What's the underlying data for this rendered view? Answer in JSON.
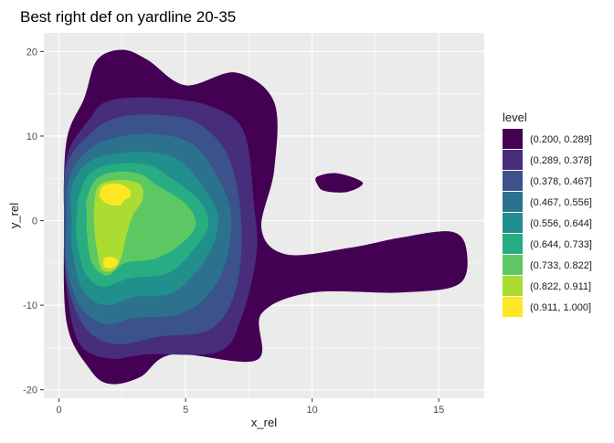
{
  "chart_data": {
    "type": "contour",
    "title": "Best right def on yardline 20-35",
    "xlabel": "x_rel",
    "ylabel": "y_rel",
    "xlim": [
      -0.6,
      16.8
    ],
    "ylim": [
      -21.0,
      22.2
    ],
    "x_ticks": [
      0,
      5,
      10,
      15
    ],
    "x_tick_labels": [
      "0",
      "5",
      "10",
      "15"
    ],
    "y_ticks": [
      -20,
      -10,
      0,
      10,
      20
    ],
    "y_tick_labels": [
      "-20",
      "-10",
      "0",
      "10",
      "20"
    ],
    "grid": true,
    "legend_position": "right",
    "legend_title": "level",
    "levels": [
      {
        "label": "(0.200, 0.289]",
        "color": "#440154"
      },
      {
        "label": "(0.289, 0.378]",
        "color": "#472D7B"
      },
      {
        "label": "(0.378, 0.467]",
        "color": "#3B528B"
      },
      {
        "label": "(0.467, 0.556]",
        "color": "#2C728E"
      },
      {
        "label": "(0.556, 0.644]",
        "color": "#21908C"
      },
      {
        "label": "(0.644, 0.733]",
        "color": "#27AD81"
      },
      {
        "label": "(0.733, 0.822]",
        "color": "#5DC863"
      },
      {
        "label": "(0.822, 0.911]",
        "color": "#AADC32"
      },
      {
        "label": "(0.911, 1.000]",
        "color": "#FDE725"
      }
    ],
    "regions": [
      {
        "level": 0,
        "points": [
          [
            0.3,
            9.5
          ],
          [
            1.0,
            14.5
          ],
          [
            1.5,
            19.0
          ],
          [
            2.5,
            20.2
          ],
          [
            3.5,
            19.0
          ],
          [
            5.0,
            16.0
          ],
          [
            7.0,
            17.5
          ],
          [
            8.5,
            14.0
          ],
          [
            8.5,
            6.0
          ],
          [
            8.0,
            -1.0
          ],
          [
            9.0,
            -4.0
          ],
          [
            11.5,
            -3.2
          ],
          [
            13.5,
            -2.0
          ],
          [
            15.5,
            -1.3
          ],
          [
            16.1,
            -3.5
          ],
          [
            15.8,
            -7.5
          ],
          [
            13.5,
            -8.5
          ],
          [
            10.0,
            -8.5
          ],
          [
            8.0,
            -11.0
          ],
          [
            7.8,
            -16.5
          ],
          [
            4.5,
            -15.8
          ],
          [
            3.2,
            -18.5
          ],
          [
            2.0,
            -19.3
          ],
          [
            1.2,
            -17.5
          ],
          [
            0.3,
            -12.0
          ],
          [
            0.2,
            0.0
          ]
        ]
      },
      {
        "level": 0,
        "points": [
          [
            10.2,
            5.2
          ],
          [
            11.0,
            5.6
          ],
          [
            12.0,
            4.5
          ],
          [
            11.4,
            3.4
          ],
          [
            10.5,
            3.5
          ],
          [
            10.2,
            4.3
          ]
        ]
      },
      {
        "level": 1,
        "points": [
          [
            0.3,
            7.5
          ],
          [
            1.2,
            12.0
          ],
          [
            2.0,
            14.2
          ],
          [
            4.0,
            14.5
          ],
          [
            6.0,
            13.5
          ],
          [
            7.3,
            10.5
          ],
          [
            7.7,
            2.0
          ],
          [
            7.8,
            -4.0
          ],
          [
            7.2,
            -11.5
          ],
          [
            6.3,
            -15.5
          ],
          [
            3.5,
            -15.8
          ],
          [
            2.0,
            -16.3
          ],
          [
            0.8,
            -14.5
          ],
          [
            0.3,
            -8.0
          ],
          [
            0.2,
            0.0
          ]
        ]
      },
      {
        "level": 2,
        "points": [
          [
            0.3,
            6.5
          ],
          [
            1.2,
            10.2
          ],
          [
            2.3,
            12.2
          ],
          [
            4.0,
            12.5
          ],
          [
            5.5,
            11.5
          ],
          [
            6.7,
            7.5
          ],
          [
            7.2,
            0.0
          ],
          [
            7.0,
            -8.0
          ],
          [
            6.0,
            -12.8
          ],
          [
            4.0,
            -13.7
          ],
          [
            2.2,
            -14.6
          ],
          [
            1.0,
            -12.5
          ],
          [
            0.3,
            -7.0
          ],
          [
            0.2,
            0.0
          ]
        ]
      },
      {
        "level": 3,
        "points": [
          [
            0.4,
            5.0
          ],
          [
            1.2,
            8.5
          ],
          [
            2.5,
            10.0
          ],
          [
            4.0,
            10.2
          ],
          [
            5.3,
            9.0
          ],
          [
            6.2,
            5.5
          ],
          [
            6.8,
            0.5
          ],
          [
            6.4,
            -6.5
          ],
          [
            5.0,
            -10.8
          ],
          [
            3.0,
            -11.5
          ],
          [
            1.8,
            -12.2
          ],
          [
            0.8,
            -10.0
          ],
          [
            0.3,
            -5.0
          ],
          [
            0.3,
            0.0
          ]
        ]
      },
      {
        "level": 4,
        "points": [
          [
            0.5,
            4.0
          ],
          [
            1.2,
            7.0
          ],
          [
            2.5,
            8.0
          ],
          [
            3.8,
            8.0
          ],
          [
            4.8,
            7.0
          ],
          [
            5.8,
            3.5
          ],
          [
            6.3,
            0.0
          ],
          [
            5.8,
            -4.5
          ],
          [
            4.5,
            -8.5
          ],
          [
            3.0,
            -9.0
          ],
          [
            1.8,
            -10.0
          ],
          [
            0.9,
            -8.0
          ],
          [
            0.5,
            -3.0
          ],
          [
            0.5,
            0.0
          ]
        ]
      },
      {
        "level": 5,
        "points": [
          [
            0.8,
            3.0
          ],
          [
            1.3,
            5.8
          ],
          [
            2.5,
            6.8
          ],
          [
            3.6,
            6.5
          ],
          [
            4.3,
            5.3
          ],
          [
            5.5,
            2.5
          ],
          [
            5.9,
            -0.5
          ],
          [
            5.3,
            -3.5
          ],
          [
            4.3,
            -6.2
          ],
          [
            2.8,
            -6.8
          ],
          [
            1.7,
            -7.8
          ],
          [
            1.0,
            -6.0
          ],
          [
            0.7,
            -2.0
          ],
          [
            0.7,
            0.5
          ]
        ]
      },
      {
        "level": 6,
        "points": [
          [
            1.1,
            2.5
          ],
          [
            1.5,
            5.0
          ],
          [
            2.4,
            5.8
          ],
          [
            3.3,
            5.4
          ],
          [
            3.8,
            4.3
          ],
          [
            5.0,
            2.0
          ],
          [
            5.4,
            -0.5
          ],
          [
            4.8,
            -2.8
          ],
          [
            3.8,
            -4.5
          ],
          [
            2.6,
            -5.0
          ],
          [
            1.9,
            -6.5
          ],
          [
            1.3,
            -5.0
          ],
          [
            1.1,
            -1.5
          ],
          [
            1.1,
            0.5
          ]
        ]
      },
      {
        "level": 7,
        "points": [
          [
            1.4,
            2.0
          ],
          [
            1.6,
            4.2
          ],
          [
            2.4,
            4.8
          ],
          [
            3.2,
            4.3
          ],
          [
            3.3,
            2.5
          ],
          [
            2.9,
            0.5
          ],
          [
            2.6,
            -2.5
          ],
          [
            2.5,
            -4.0
          ],
          [
            2.2,
            -5.8
          ],
          [
            1.7,
            -5.8
          ],
          [
            1.5,
            -3.5
          ],
          [
            1.4,
            -1.0
          ]
        ]
      },
      {
        "level": 8,
        "points": [
          [
            1.6,
            3.0
          ],
          [
            1.8,
            4.2
          ],
          [
            2.4,
            4.3
          ],
          [
            2.8,
            3.6
          ],
          [
            2.8,
            2.8
          ],
          [
            2.6,
            2.5
          ],
          [
            2.4,
            1.8
          ],
          [
            1.9,
            2.0
          ]
        ]
      },
      {
        "level": 8,
        "points": [
          [
            1.75,
            -5.0
          ],
          [
            1.8,
            -4.4
          ],
          [
            2.1,
            -4.3
          ],
          [
            2.35,
            -4.9
          ],
          [
            2.1,
            -5.6
          ],
          [
            1.8,
            -5.5
          ]
        ]
      }
    ]
  }
}
